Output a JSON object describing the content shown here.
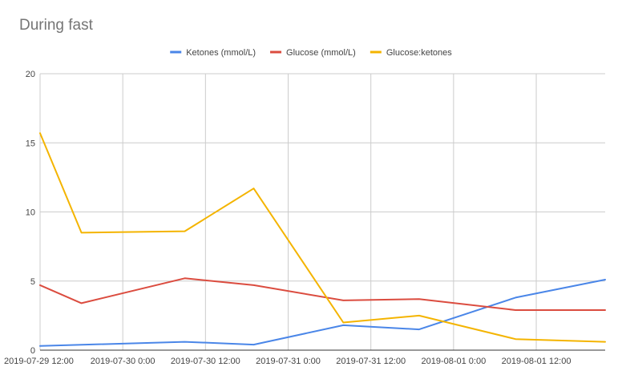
{
  "chart_data": {
    "type": "line",
    "title": "During fast",
    "xlabel": "",
    "ylabel": "",
    "legend_position": "top",
    "grid": true,
    "ylim": [
      0,
      20
    ],
    "y_ticks": [
      "0",
      "5",
      "10",
      "15",
      "20"
    ],
    "x_range": [
      "2019-07-29 12:00",
      "2019-08-01 22:00"
    ],
    "x_ticks": [
      "2019-07-29 12:00",
      "2019-07-30 0:00",
      "2019-07-30 12:00",
      "2019-07-31 0:00",
      "2019-07-31 12:00",
      "2019-08-01 0:00",
      "2019-08-01 12:00"
    ],
    "x": [
      "2019-07-29 12:00",
      "2019-07-29 18:00",
      "2019-07-30 9:00",
      "2019-07-30 19:00",
      "2019-07-31 8:00",
      "2019-07-31 19:00",
      "2019-08-01 9:00",
      "2019-08-01 22:00"
    ],
    "series": [
      {
        "name": "Ketones (mmol/L)",
        "color": "#4a86e8",
        "values": [
          0.3,
          null,
          0.6,
          0.4,
          1.8,
          1.5,
          3.8,
          5.1
        ]
      },
      {
        "name": "Glucose (mmol/L)",
        "color": "#db4c3f",
        "values": [
          4.7,
          3.4,
          5.2,
          4.7,
          3.6,
          3.7,
          2.9,
          2.9
        ]
      },
      {
        "name": "Glucose:ketones",
        "color": "#f4b400",
        "values": [
          15.7,
          8.5,
          8.6,
          11.7,
          2.0,
          2.5,
          0.8,
          0.6
        ]
      }
    ]
  }
}
